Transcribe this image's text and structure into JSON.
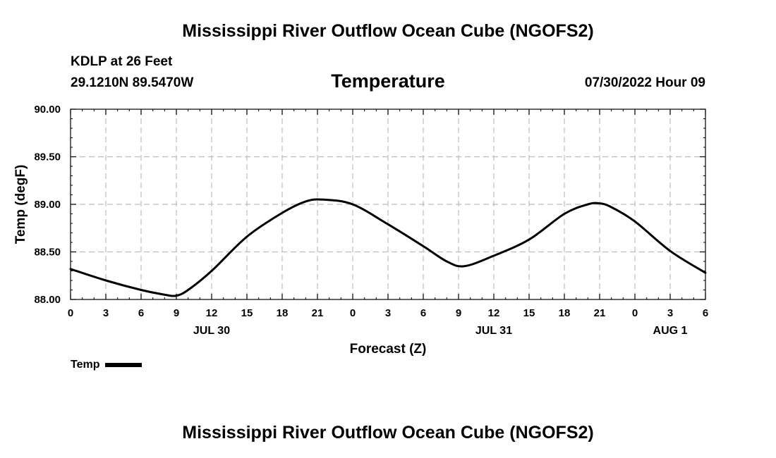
{
  "header": {
    "title": "Mississippi River Outflow Ocean Cube (NGOFS2)",
    "station": "KDLP at 26 Feet",
    "coords": "29.1210N  89.5470W",
    "variable": "Temperature",
    "datetime": "07/30/2022 Hour 09"
  },
  "footer": {
    "title": "Mississippi River Outflow Ocean Cube (NGOFS2)"
  },
  "legend": {
    "label": "Temp"
  },
  "chart_data": {
    "type": "line",
    "title": "Temperature",
    "xlabel": "Forecast (Z)",
    "ylabel": "Temp (degF)",
    "xlim": [
      0,
      54
    ],
    "ylim": [
      88.0,
      90.0
    ],
    "grid": true,
    "x_ticks": [
      0,
      3,
      6,
      9,
      12,
      15,
      18,
      21,
      24,
      27,
      30,
      33,
      36,
      39,
      42,
      45,
      48,
      51,
      54
    ],
    "x_tick_labels": [
      "0",
      "3",
      "6",
      "9",
      "12",
      "15",
      "18",
      "21",
      "0",
      "3",
      "6",
      "9",
      "12",
      "15",
      "18",
      "21",
      "0",
      "3",
      "6"
    ],
    "day_labels": [
      {
        "x": 12,
        "label": "JUL 30"
      },
      {
        "x": 36,
        "label": "JUL 31"
      },
      {
        "x": 51,
        "label": "AUG 1"
      }
    ],
    "y_ticks": [
      88.0,
      88.5,
      89.0,
      89.5,
      90.0
    ],
    "y_tick_labels": [
      "88.00",
      "88.50",
      "89.00",
      "89.50",
      "90.00"
    ],
    "series": [
      {
        "name": "Temp",
        "x": [
          0,
          3,
          6,
          8,
          9,
          10,
          12,
          15,
          18,
          20,
          21.5,
          24,
          27,
          30,
          32,
          33.5,
          36,
          39,
          42,
          44,
          45,
          46,
          48,
          51,
          54
        ],
        "values": [
          88.32,
          88.2,
          88.1,
          88.05,
          88.04,
          88.1,
          88.3,
          88.66,
          88.91,
          89.03,
          89.05,
          89.0,
          88.79,
          88.56,
          88.4,
          88.35,
          88.46,
          88.63,
          88.9,
          89.0,
          89.01,
          88.97,
          88.82,
          88.51,
          88.28
        ]
      }
    ]
  }
}
